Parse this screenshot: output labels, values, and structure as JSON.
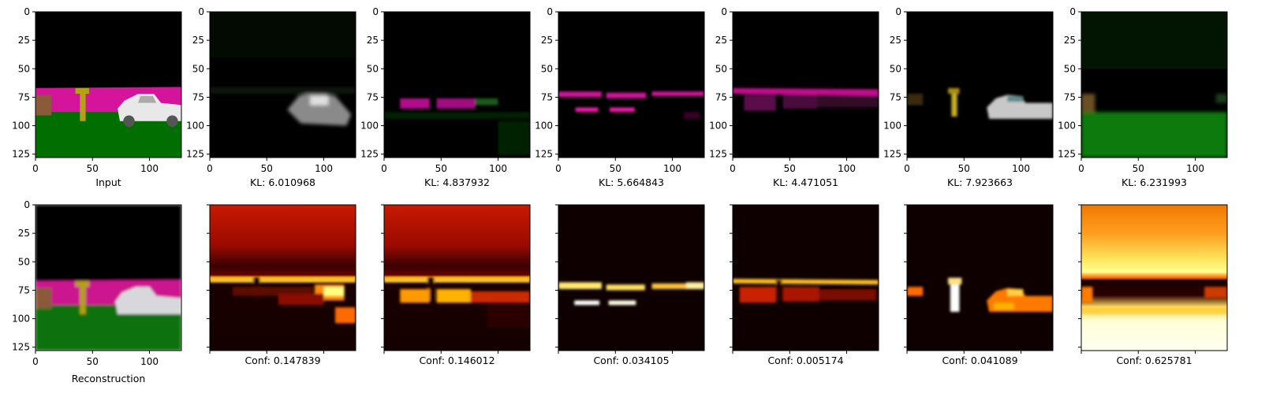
{
  "chart_data": {
    "type": "image-grid",
    "rows": 2,
    "cols": 7,
    "axis": {
      "xlim": [
        0,
        128
      ],
      "ylim": [
        128,
        0
      ],
      "ticks": [
        0,
        25,
        50,
        75,
        100,
        125
      ],
      "xticks": [
        0,
        50,
        100
      ]
    },
    "top_row": [
      {
        "caption": "Input",
        "kind": "scene"
      },
      {
        "caption": "KL: 6.010968",
        "kind": "slot-car"
      },
      {
        "caption": "KL: 4.837932",
        "kind": "slot-wall"
      },
      {
        "caption": "KL: 5.664843",
        "kind": "slot-stripes"
      },
      {
        "caption": "KL: 4.471051",
        "kind": "slot-wall2"
      },
      {
        "caption": "KL: 7.923663",
        "kind": "slot-objects"
      },
      {
        "caption": "KL: 6.231993",
        "kind": "slot-ground"
      }
    ],
    "bottom_row": [
      {
        "caption": "Reconstruction",
        "kind": "scene-blur"
      },
      {
        "caption": "Conf: 0.147839",
        "kind": "heat-a"
      },
      {
        "caption": "Conf: 0.146012",
        "kind": "heat-b"
      },
      {
        "caption": "Conf: 0.034105",
        "kind": "heat-c"
      },
      {
        "caption": "Conf: 0.005174",
        "kind": "heat-d"
      },
      {
        "caption": "Conf: 0.041089",
        "kind": "heat-e"
      },
      {
        "caption": "Conf: 0.625781",
        "kind": "heat-f"
      }
    ],
    "colors": {
      "sky": "#000000",
      "wall": "#d4149a",
      "ground": "#006e00",
      "car": "#e8e8e8",
      "pole": "#b4a019"
    }
  }
}
